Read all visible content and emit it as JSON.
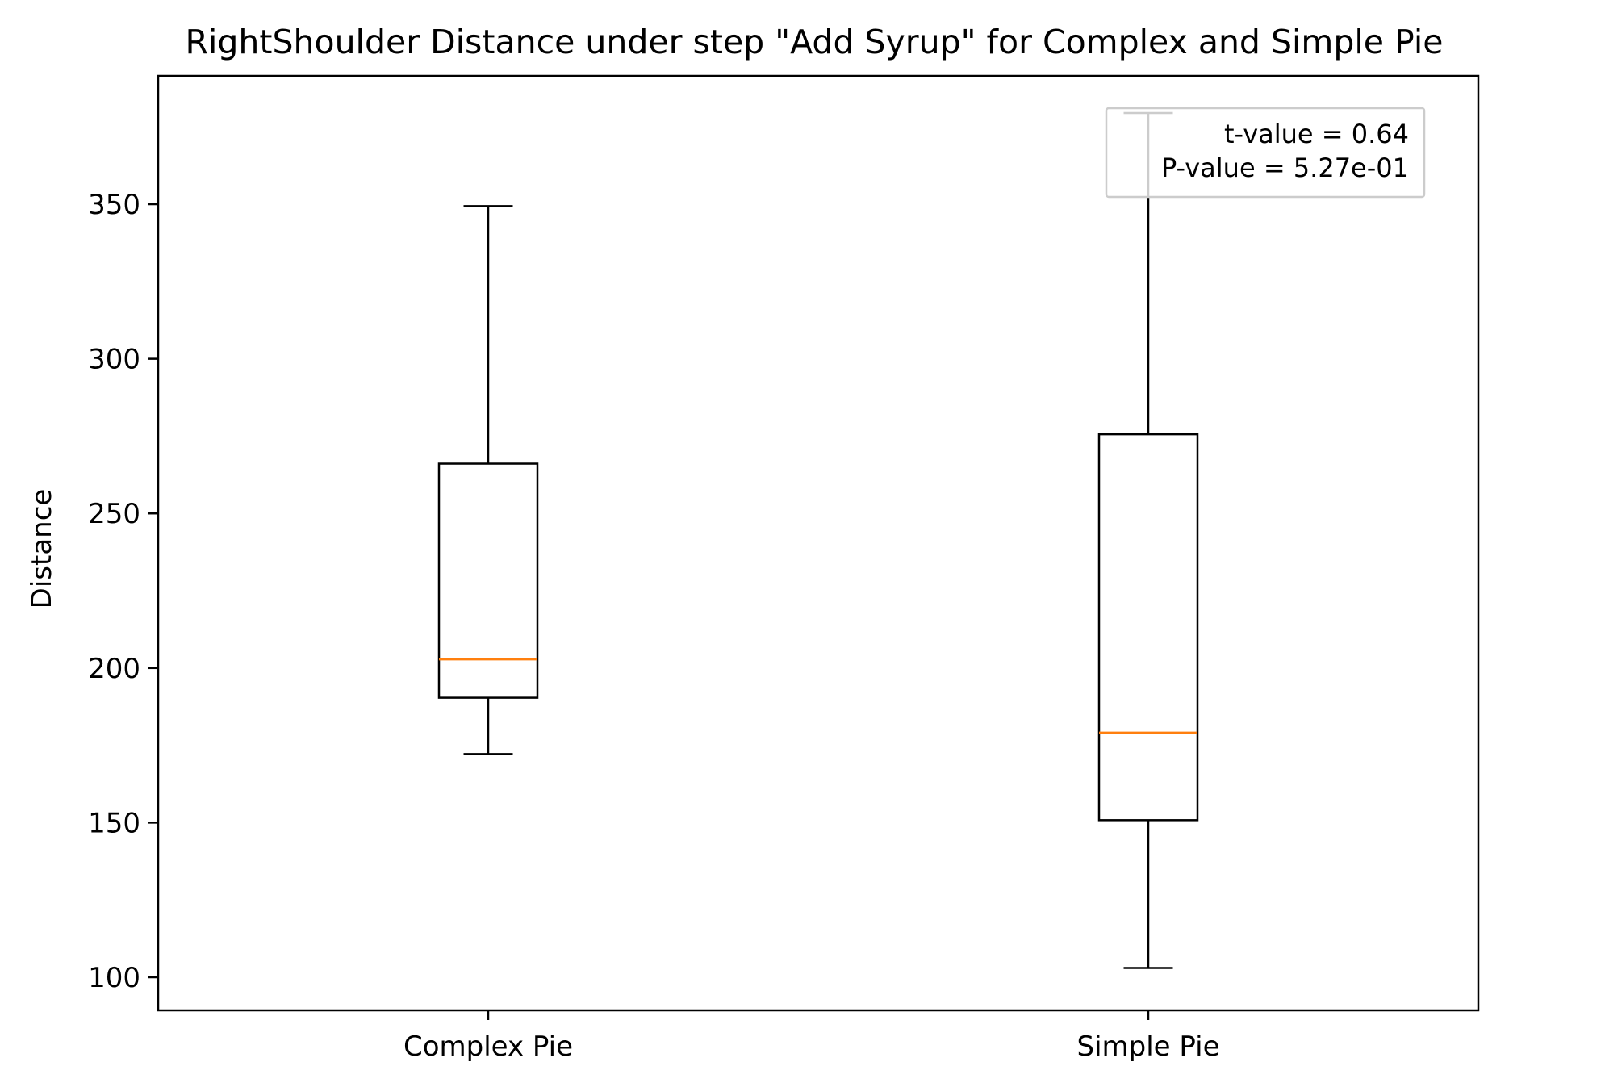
{
  "chart_data": {
    "type": "box",
    "title": "RightShoulder Distance under step \"Add Syrup\" for Complex and Simple Pie",
    "xlabel": "",
    "ylabel": "Distance",
    "ylim": [
      89.3,
      391.5
    ],
    "yticks": [
      100,
      150,
      200,
      250,
      300,
      350
    ],
    "categories": [
      "Complex Pie",
      "Simple Pie"
    ],
    "boxes": [
      {
        "category": "Complex Pie",
        "whislo": 172.2,
        "q1": 190.4,
        "med": 202.8,
        "q3": 266.1,
        "whishi": 349.4
      },
      {
        "category": "Simple Pie",
        "whislo": 103.0,
        "q1": 150.8,
        "med": 179.1,
        "q3": 275.6,
        "whishi": 379.5
      }
    ],
    "annotation": {
      "lines": [
        "t-value = 0.64",
        "P-value = 5.27e-01"
      ],
      "placement": "top-right"
    },
    "colors": {
      "box": "#000000",
      "median": "#ff7f0e",
      "annotation_border": "#cccccc"
    },
    "grid": false
  }
}
